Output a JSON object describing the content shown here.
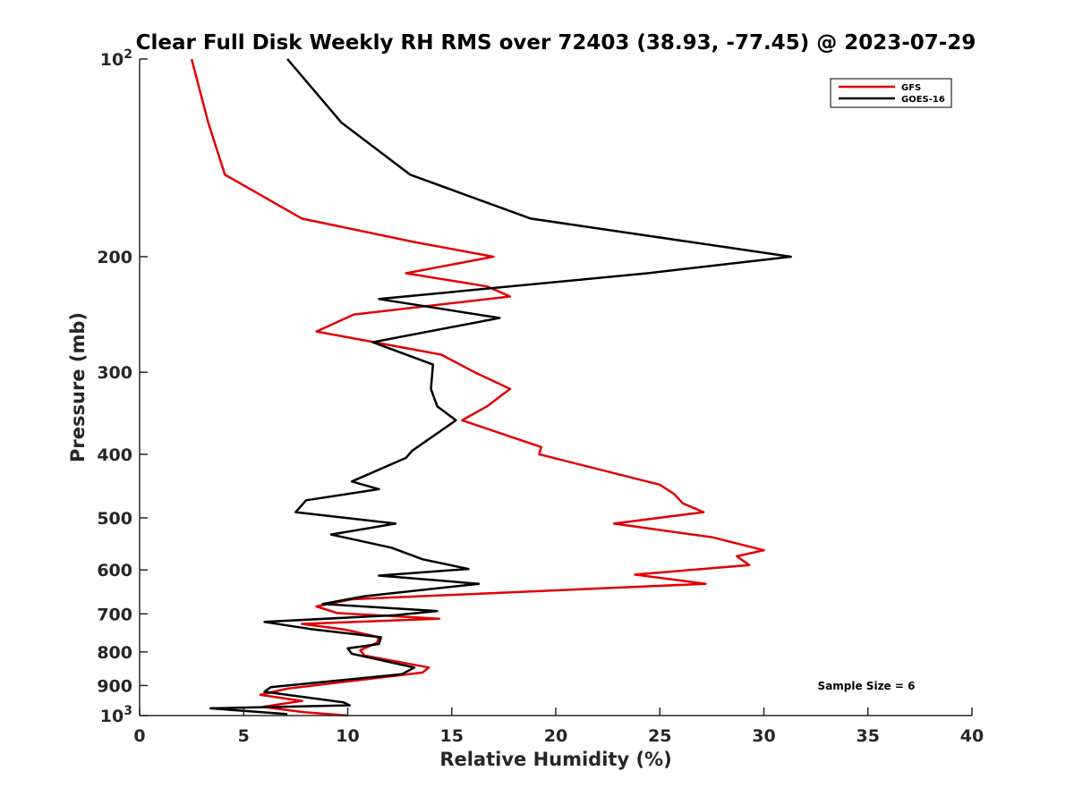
{
  "chart_data": {
    "type": "line",
    "title": "Clear Full Disk Weekly RH RMS over 72403 (38.93, -77.45) @ 2023-07-29",
    "xlabel": "Relative Humidity (%)",
    "ylabel": "Pressure (mb)",
    "xlim": [
      0,
      40
    ],
    "ylim": [
      100,
      1000
    ],
    "y_scale": "log",
    "y_reversed": true,
    "grid": false,
    "legend_position": "top-right",
    "x_ticks": [
      "0",
      "5",
      "10",
      "15",
      "20",
      "25",
      "30",
      "35",
      "40"
    ],
    "y_ticks": [
      {
        "value": 100,
        "label": "10",
        "sup": "2"
      },
      {
        "value": 200,
        "label": "200",
        "sup": ""
      },
      {
        "value": 300,
        "label": "300",
        "sup": ""
      },
      {
        "value": 400,
        "label": "400",
        "sup": ""
      },
      {
        "value": 500,
        "label": "500",
        "sup": ""
      },
      {
        "value": 600,
        "label": "600",
        "sup": ""
      },
      {
        "value": 700,
        "label": "700",
        "sup": ""
      },
      {
        "value": 800,
        "label": "800",
        "sup": ""
      },
      {
        "value": 900,
        "label": "900",
        "sup": ""
      },
      {
        "value": 1000,
        "label": "10",
        "sup": "3"
      }
    ],
    "series": [
      {
        "name": "GFS",
        "color": "#e00000",
        "points": [
          [
            2.5,
            100
          ],
          [
            3.3,
            125
          ],
          [
            4.1,
            150
          ],
          [
            7.8,
            175
          ],
          [
            13.2,
            190
          ],
          [
            17.0,
            200
          ],
          [
            12.8,
            212
          ],
          [
            16.7,
            222
          ],
          [
            17.8,
            230
          ],
          [
            10.3,
            245
          ],
          [
            8.5,
            260
          ],
          [
            14.5,
            282
          ],
          [
            16.1,
            300
          ],
          [
            17.8,
            318
          ],
          [
            16.7,
            338
          ],
          [
            15.5,
            355
          ],
          [
            19.3,
            390
          ],
          [
            19.2,
            400
          ],
          [
            25.0,
            445
          ],
          [
            25.7,
            460
          ],
          [
            26.1,
            475
          ],
          [
            27.1,
            490
          ],
          [
            22.8,
            510
          ],
          [
            27.5,
            535
          ],
          [
            30.0,
            560
          ],
          [
            28.7,
            572
          ],
          [
            29.3,
            590
          ],
          [
            23.8,
            610
          ],
          [
            27.2,
            630
          ],
          [
            10.2,
            665
          ],
          [
            8.5,
            682
          ],
          [
            9.5,
            698
          ],
          [
            14.4,
            712
          ],
          [
            7.8,
            725
          ],
          [
            9.9,
            740
          ],
          [
            11.5,
            760
          ],
          [
            11.4,
            775
          ],
          [
            10.6,
            795
          ],
          [
            10.8,
            810
          ],
          [
            13.9,
            845
          ],
          [
            13.6,
            860
          ],
          [
            7.1,
            910
          ],
          [
            5.8,
            930
          ],
          [
            7.8,
            950
          ],
          [
            5.9,
            970
          ],
          [
            7.9,
            988
          ],
          [
            10.0,
            1000
          ]
        ]
      },
      {
        "name": "GOES-16",
        "color": "#000000",
        "points": [
          [
            7.1,
            100
          ],
          [
            9.7,
            125
          ],
          [
            13.0,
            150
          ],
          [
            18.8,
            175
          ],
          [
            31.3,
            200
          ],
          [
            24.4,
            212
          ],
          [
            11.5,
            232
          ],
          [
            17.3,
            248
          ],
          [
            11.2,
            270
          ],
          [
            14.1,
            292
          ],
          [
            14.0,
            318
          ],
          [
            14.3,
            338
          ],
          [
            15.2,
            355
          ],
          [
            13.1,
            395
          ],
          [
            12.8,
            405
          ],
          [
            10.2,
            440
          ],
          [
            11.5,
            452
          ],
          [
            8.0,
            470
          ],
          [
            7.5,
            490
          ],
          [
            12.3,
            510
          ],
          [
            9.2,
            530
          ],
          [
            12.1,
            555
          ],
          [
            13.6,
            578
          ],
          [
            15.8,
            598
          ],
          [
            11.5,
            612
          ],
          [
            16.3,
            630
          ],
          [
            10.8,
            658
          ],
          [
            8.8,
            676
          ],
          [
            14.3,
            693
          ],
          [
            12.3,
            703
          ],
          [
            6.0,
            720
          ],
          [
            8.2,
            738
          ],
          [
            11.6,
            760
          ],
          [
            11.5,
            778
          ],
          [
            10.0,
            790
          ],
          [
            10.2,
            805
          ],
          [
            13.2,
            845
          ],
          [
            12.6,
            865
          ],
          [
            6.3,
            905
          ],
          [
            6.0,
            920
          ],
          [
            9.8,
            955
          ],
          [
            10.1,
            965
          ],
          [
            3.4,
            975
          ],
          [
            7.1,
            995
          ]
        ]
      }
    ],
    "annotations": [
      {
        "text": "Sample Size = 6"
      }
    ]
  }
}
